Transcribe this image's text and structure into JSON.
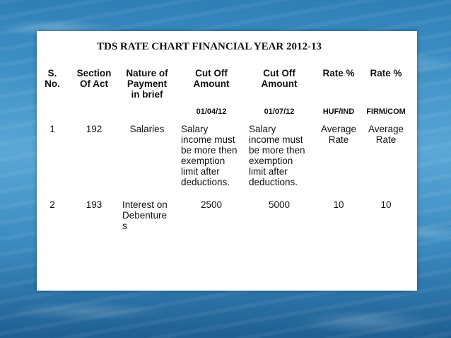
{
  "title": "TDS RATE CHART FINANCIAL YEAR 2012-13",
  "headers": [
    "S.\nNo.",
    "Section\nOf Act",
    "Nature of\nPayment\nin brief",
    "Cut Off\nAmount",
    "Cut Off\nAmount",
    "Rate %",
    "Rate %"
  ],
  "subheaders": [
    "01/04/12",
    "01/07/12",
    "HUF/IND",
    "FIRM/COM"
  ],
  "rows": [
    {
      "sno": "1",
      "section": "192",
      "nature": "Salaries",
      "cutoff_1": "Salary\nincome must\nbe more then\nexemption\nlimit after\ndeductions.",
      "cutoff_2": "Salary\nincome must\nbe more then\nexemption\nlimit after\ndeductions.",
      "rate_huf": "Average\nRate",
      "rate_firm": "Average\nRate"
    },
    {
      "sno": "2",
      "section": "193",
      "nature": "Interest on\nDebenture\ns",
      "cutoff_1": "2500",
      "cutoff_2": "5000",
      "rate_huf": "10",
      "rate_firm": "10"
    }
  ]
}
